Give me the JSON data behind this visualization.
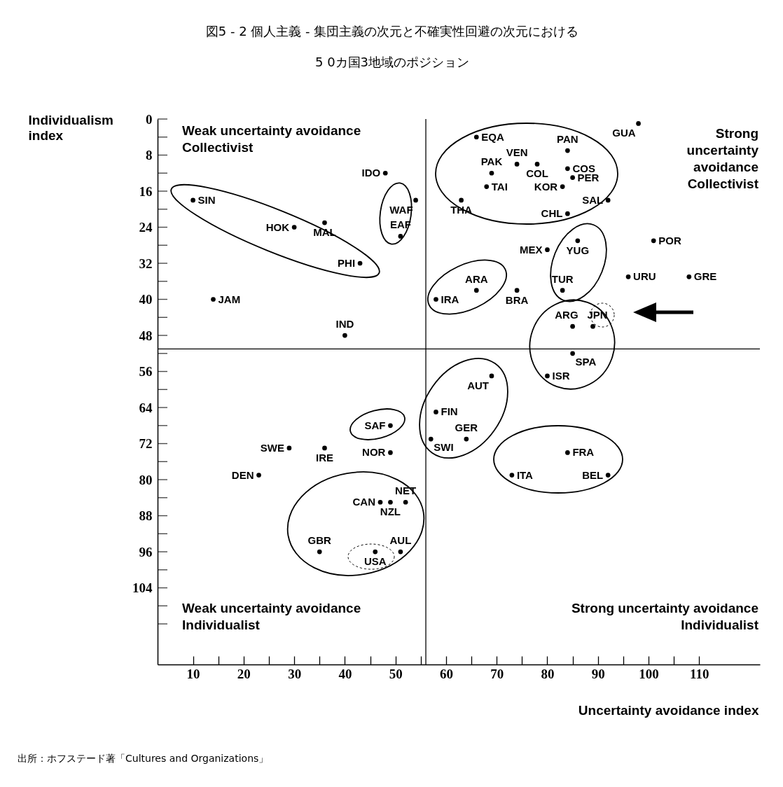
{
  "chart_data": {
    "type": "scatter",
    "title": "図5 - 2 個人主義 - 集団主義の次元と不確実性回避の次元における\n5 0カ国3地域のポジション",
    "xlabel": "Uncertainty avoidance index",
    "ylabel": "Individualism\nindex",
    "series": [
      {
        "color": "#000000",
        "x": [
          10,
          30,
          36,
          43,
          14,
          40,
          48,
          54,
          51,
          66,
          84,
          74,
          69,
          78,
          84,
          85,
          68,
          83,
          63,
          92,
          84,
          98,
          80,
          86,
          101,
          96,
          108,
          83,
          66,
          58,
          74,
          85,
          89,
          85,
          80,
          69,
          58,
          57,
          64,
          84,
          73,
          92,
          49,
          29,
          36,
          49,
          23,
          47,
          49,
          52,
          35,
          46,
          51
        ],
        "values": [
          18,
          24,
          23,
          32,
          40,
          48,
          12,
          18,
          26,
          4,
          7,
          10,
          12,
          10,
          11,
          13,
          15,
          15,
          18,
          18,
          21,
          1,
          29,
          27,
          27,
          35,
          35,
          38,
          38,
          40,
          38,
          46,
          46,
          52,
          57,
          57,
          65,
          71,
          71,
          74,
          79,
          79,
          68,
          73,
          73,
          74,
          79,
          85,
          85,
          85,
          96,
          96,
          96
        ],
        "value_labels": [
          "SIN",
          "HOK",
          "MAL",
          "PHI",
          "JAM",
          "IND",
          "IDO",
          "WAF",
          "EAF",
          "EQA",
          "PAN",
          "VEN",
          "PAK",
          "COL",
          "COS",
          "PER",
          "TAI",
          "KOR",
          "THA",
          "SAL",
          "CHL",
          "GUA",
          "MEX",
          "YUG",
          "POR",
          "URU",
          "GRE",
          "TUR",
          "ARA",
          "IRA",
          "BRA",
          "ARG",
          "JPN",
          "SPA",
          "ISR",
          "AUT",
          "FIN",
          "SWI",
          "GER",
          "FRA",
          "ITA",
          "BEL",
          "SAF",
          "SWE",
          "IRE",
          "NOR",
          "DEN",
          "CAN",
          "NZL",
          "NET",
          "GBR",
          "USA",
          "AUL"
        ]
      }
    ],
    "marker": "circle",
    "xlim": [
      3,
      122
    ],
    "ylim": [
      121,
      0
    ],
    "xticks": [
      10,
      {
        "value": 15,
        "label": null
      },
      20,
      {
        "value": 25,
        "label": null
      },
      30,
      {
        "value": 35,
        "label": null
      },
      40,
      {
        "value": 45,
        "label": null
      },
      50,
      {
        "value": 55,
        "label": null
      },
      60,
      {
        "value": 65,
        "label": null
      },
      70,
      {
        "value": 75,
        "label": null
      },
      80,
      {
        "value": 85,
        "label": null
      },
      90,
      {
        "value": 95,
        "label": null
      },
      100,
      {
        "value": 105,
        "label": null
      },
      110
    ],
    "yticks": [
      0,
      {
        "value": 4,
        "label": null
      },
      8,
      {
        "value": 12,
        "label": null
      },
      16,
      {
        "value": 20,
        "label": null
      },
      24,
      {
        "value": 28,
        "label": null
      },
      32,
      {
        "value": 36,
        "label": null
      },
      40,
      {
        "value": 44,
        "label": null
      },
      48,
      {
        "value": 52,
        "label": null
      },
      56,
      {
        "value": 60,
        "label": null
      },
      64,
      {
        "value": 68,
        "label": null
      },
      72,
      {
        "value": 76,
        "label": null
      },
      80,
      {
        "value": 84,
        "label": null
      },
      88,
      {
        "value": 92,
        "label": null
      },
      96,
      {
        "value": 100,
        "label": null
      },
      104,
      {
        "value": 108,
        "label": null
      },
      {
        "value": 112,
        "label": null
      }
    ],
    "ref_lines": [
      {
        "axis": "x",
        "value": 56
      },
      {
        "axis": "y",
        "value": 51
      }
    ],
    "annotations": [
      "Weak uncertainty avoidance\nCollectivist",
      "Strong\nuncertainty\navoidance\nCollectivist",
      "Weak uncertainty avoidance\nIndividualist",
      "Strong uncertainty avoidance\nIndividualist",
      "出所：ホフステード著「Cultures and Organizations」"
    ]
  }
}
